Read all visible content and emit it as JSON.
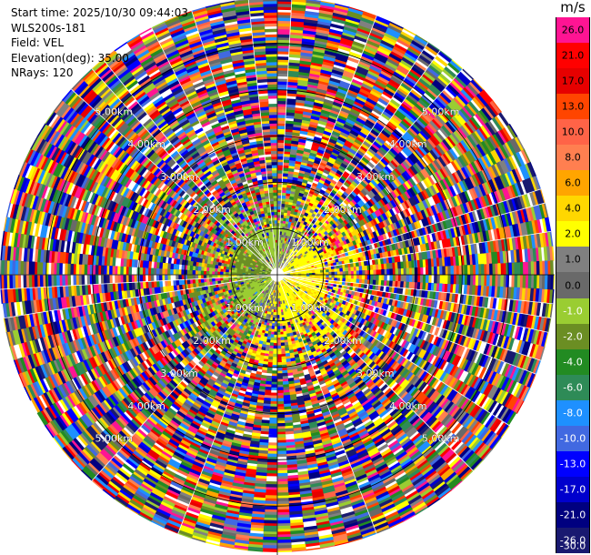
{
  "header": {
    "start_time": "Start time: 2025/10/30 09:44:03",
    "instrument": "WLS200s-181",
    "field": "Field: VEL",
    "elevation": "Elevation(deg): 35.00",
    "nrays": "NRays: 120"
  },
  "chart_data": {
    "type": "heatmap",
    "projection": "polar PPI",
    "n_rays": 120,
    "elevation_deg": 35.0,
    "max_range_km": 6.0,
    "range_ring_labels": [
      "1.00km",
      "2.00km",
      "3.00km",
      "4.00km",
      "5.00km"
    ],
    "range_rings_km": [
      1,
      2,
      3,
      4,
      5
    ],
    "colorbar": {
      "unit": "m/s",
      "ticks": [
        "26.0",
        "21.0",
        "17.0",
        "13.0",
        "10.0",
        "8.0",
        "6.0",
        "4.0",
        "2.0",
        "1.0",
        "0.0",
        "-1.0",
        "-2.0",
        "-4.0",
        "-6.0",
        "-8.0",
        "-10.0",
        "-13.0",
        "-17.0",
        "-21.0",
        "-26.0",
        "-30.0"
      ],
      "colors": [
        "#ff1493",
        "#ff0000",
        "#e60000",
        "#ff4500",
        "#ff6347",
        "#ff7f50",
        "#ffa500",
        "#ffd700",
        "#ffff00",
        "#808080",
        "#696969",
        "#9acd32",
        "#6b8e23",
        "#228b22",
        "#2e8b57",
        "#1e90ff",
        "#4169e1",
        "#0000ff",
        "#0000cd",
        "#000080",
        "#191970"
      ]
    }
  }
}
